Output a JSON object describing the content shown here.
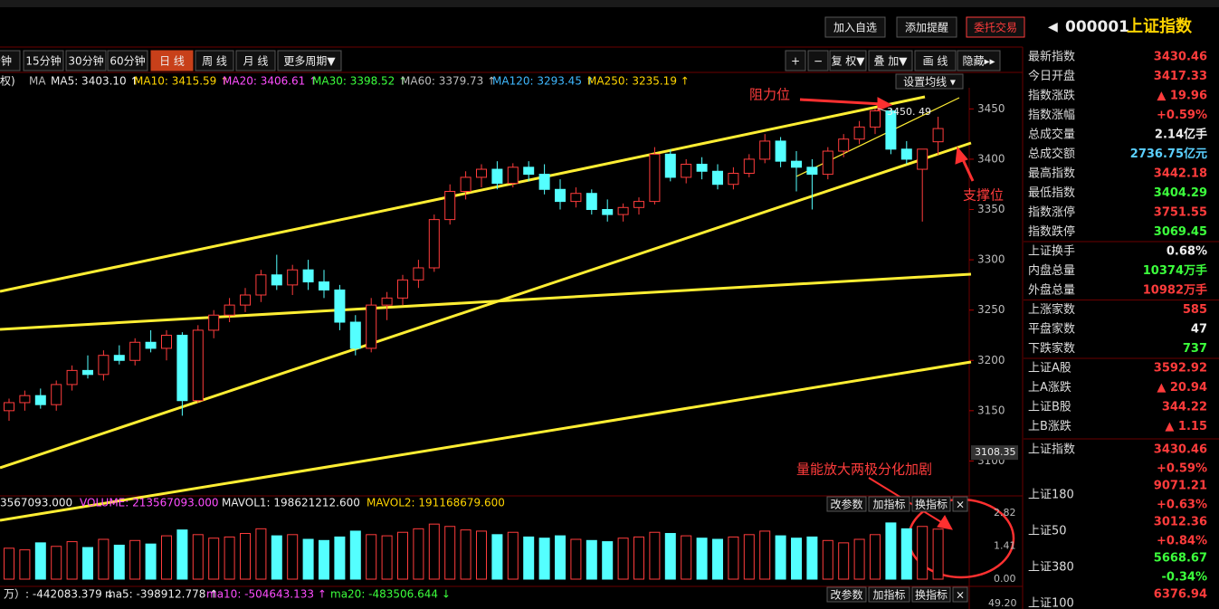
{
  "toolbar": {
    "buttons": [
      "加入自选",
      "添加提醒",
      "委托交易"
    ],
    "code": "000001",
    "name": "上证指数"
  },
  "period_tabs": [
    "分钟",
    "15分钟",
    "30分钟",
    "60分钟",
    "日 线",
    "周 线",
    "月 线",
    "更多周期▼"
  ],
  "selected_tab": 4,
  "chart_tools": [
    "+",
    "−",
    "复 权▼",
    "叠 加▼",
    "画 线",
    "隐藏▸▸"
  ],
  "ma_bar": {
    "prefix": "权)",
    "label": "MA",
    "button": "设置均线 ▾",
    "items": [
      {
        "text": "MA5: 3403.10 ↑",
        "color": "white"
      },
      {
        "text": "MA10: 3415.59 ↑",
        "color": "yellow"
      },
      {
        "text": "MA20: 3406.61 ↑",
        "color": "magenta"
      },
      {
        "text": "MA30: 3398.52 ↑",
        "color": "green"
      },
      {
        "text": "MA60: 3379.73 ↑",
        "color": "gray"
      },
      {
        "text": "MA120: 3293.45 ↑",
        "color": "blue"
      },
      {
        "text": "MA250: 3235.19 ↑",
        "color": "yellow"
      }
    ]
  },
  "volume_bar": {
    "items": [
      {
        "text": "3567093.000",
        "color": "white"
      },
      {
        "text": "VOLUME: 213567093.000",
        "color": "magenta"
      },
      {
        "text": "MAVOL1: 198621212.600",
        "color": "white"
      },
      {
        "text": "MAVOL2: 191168679.600",
        "color": "yellow"
      }
    ],
    "buttons": [
      "改参数",
      "加指标",
      "换指标",
      "×"
    ]
  },
  "indicator_bar": {
    "items": [
      {
        "text": "万）: -442083.379 ↓",
        "color": "white"
      },
      {
        "text": "ma5: -398912.778 ↑",
        "color": "white"
      },
      {
        "text": "ma10: -504643.133 ↑",
        "color": "magenta"
      },
      {
        "text": "ma20: -483506.644 ↓",
        "color": "green"
      }
    ],
    "buttons": [
      "改参数",
      "加指标",
      "换指标",
      "×"
    ],
    "tick": "49.20"
  },
  "annotations": [
    "阻力位",
    "支撑位",
    "量能放大两极分化加剧"
  ],
  "chart_data": [
    {
      "type": "candlestick",
      "ylim": [
        3068,
        3471
      ],
      "yticks": [
        3100,
        3150,
        3200,
        3250,
        3300,
        3350,
        3400,
        3450
      ],
      "up_color": "#ff3c3c",
      "down_color": "#54ffff",
      "high_label": "3450. 49",
      "low_marker": 3108.35,
      "open": [
        3150,
        3158,
        3165,
        3156,
        3176,
        3190,
        3186,
        3205,
        3200,
        3218,
        3212,
        3225,
        3160,
        3230,
        3245,
        3255,
        3265,
        3285,
        3275,
        3290,
        3278,
        3270,
        3238,
        3212,
        3255,
        3262,
        3280,
        3292,
        3340,
        3368,
        3382,
        3390,
        3376,
        3392,
        3385,
        3370,
        3358,
        3366,
        3350,
        3345,
        3352,
        3358,
        3405,
        3382,
        3395,
        3388,
        3375,
        3386,
        3400,
        3418,
        3398,
        3392,
        3385,
        3408,
        3420,
        3432,
        3448,
        3410,
        3390,
        3417.33
      ],
      "high": [
        3162,
        3170,
        3172,
        3180,
        3195,
        3205,
        3210,
        3215,
        3222,
        3230,
        3230,
        3228,
        3235,
        3250,
        3262,
        3272,
        3290,
        3305,
        3295,
        3300,
        3290,
        3275,
        3245,
        3262,
        3268,
        3285,
        3300,
        3345,
        3375,
        3388,
        3395,
        3398,
        3396,
        3398,
        3395,
        3380,
        3372,
        3370,
        3360,
        3356,
        3362,
        3412,
        3410,
        3400,
        3402,
        3395,
        3392,
        3405,
        3425,
        3422,
        3408,
        3400,
        3412,
        3425,
        3438,
        3450.49,
        3450,
        3418,
        3408,
        3442.18
      ],
      "low": [
        3140,
        3150,
        3152,
        3150,
        3170,
        3182,
        3180,
        3196,
        3195,
        3208,
        3200,
        3145,
        3158,
        3222,
        3238,
        3248,
        3258,
        3270,
        3265,
        3270,
        3262,
        3230,
        3205,
        3208,
        3240,
        3255,
        3272,
        3288,
        3335,
        3360,
        3372,
        3370,
        3372,
        3378,
        3365,
        3350,
        3352,
        3345,
        3338,
        3338,
        3345,
        3355,
        3378,
        3376,
        3380,
        3370,
        3370,
        3382,
        3396,
        3392,
        3368,
        3350,
        3380,
        3402,
        3415,
        3425,
        3405,
        3395,
        3338,
        3404.29
      ],
      "close": [
        3158,
        3165,
        3156,
        3176,
        3190,
        3186,
        3205,
        3200,
        3218,
        3212,
        3225,
        3160,
        3230,
        3245,
        3255,
        3265,
        3285,
        3275,
        3290,
        3278,
        3270,
        3238,
        3212,
        3255,
        3262,
        3280,
        3292,
        3340,
        3368,
        3382,
        3390,
        3376,
        3392,
        3385,
        3370,
        3358,
        3366,
        3350,
        3345,
        3352,
        3358,
        3405,
        3382,
        3395,
        3388,
        3375,
        3386,
        3400,
        3418,
        3398,
        3392,
        3385,
        3408,
        3420,
        3432,
        3448,
        3410,
        3400,
        3410,
        3430.46
      ]
    },
    {
      "type": "bar",
      "ylim": [
        0,
        2.82
      ],
      "yticks": [
        {
          "value": 0,
          "label": "0.00"
        },
        1.41,
        2.82
      ],
      "values": [
        1.32,
        1.25,
        1.55,
        1.4,
        1.6,
        1.35,
        1.7,
        1.45,
        1.65,
        1.5,
        1.85,
        2.1,
        1.9,
        1.75,
        1.8,
        1.95,
        2.15,
        1.85,
        1.9,
        1.7,
        1.65,
        1.8,
        2.05,
        1.9,
        1.85,
        2.0,
        2.15,
        2.35,
        2.25,
        2.1,
        2.05,
        1.9,
        2.0,
        1.8,
        1.75,
        1.85,
        1.7,
        1.65,
        1.6,
        1.75,
        1.8,
        2.0,
        1.95,
        1.85,
        1.75,
        1.7,
        1.8,
        1.9,
        2.05,
        1.85,
        1.75,
        1.8,
        1.65,
        1.55,
        1.7,
        1.9,
        2.4,
        2.15,
        2.25,
        2.1357
      ]
    }
  ],
  "quote_panel": {
    "rows": [
      {
        "label": "最新指数",
        "value": "3430.46",
        "color": "red"
      },
      {
        "label": "今日开盘",
        "value": "3417.33",
        "color": "red"
      },
      {
        "label": "指数涨跌",
        "value": "▲ 19.96",
        "color": "red"
      },
      {
        "label": "指数涨幅",
        "value": "+0.59%",
        "color": "red"
      },
      {
        "label": "总成交量",
        "value": "2.14亿手",
        "color": "white"
      },
      {
        "label": "总成交额",
        "value": "2736.75亿元",
        "color": "cyan"
      },
      {
        "label": "最高指数",
        "value": "3442.18",
        "color": "red"
      },
      {
        "label": "最低指数",
        "value": "3404.29",
        "color": "green"
      },
      {
        "label": "指数涨停",
        "value": "3751.55",
        "color": "red"
      },
      {
        "label": "指数跌停",
        "value": "3069.45",
        "color": "green"
      },
      {
        "label": "上证换手",
        "value": "0.68%",
        "color": "white"
      },
      {
        "label": "内盘总量",
        "value": "10374万手",
        "color": "green"
      },
      {
        "label": "外盘总量",
        "value": "10982万手",
        "color": "red"
      },
      {
        "label": "上涨家数",
        "value": "585",
        "color": "red"
      },
      {
        "label": "平盘家数",
        "value": "47",
        "color": "white"
      },
      {
        "label": "下跌家数",
        "value": "737",
        "color": "green"
      },
      {
        "label": "上证A股",
        "value": "3592.92",
        "color": "red"
      },
      {
        "label": "上A涨跌",
        "value": "▲ 20.94",
        "color": "red"
      },
      {
        "label": "上证B股",
        "value": "344.22",
        "color": "red"
      },
      {
        "label": "上B涨跌",
        "value": "▲ 1.15",
        "color": "red"
      }
    ],
    "index_rows": [
      {
        "label": "上证指数",
        "value": "3430.46",
        "change": "+0.59%",
        "color": "red"
      },
      {
        "label": "上证180",
        "value": "9071.21",
        "change": "+0.63%",
        "color": "red"
      },
      {
        "label": "上证50",
        "value": "3012.36",
        "change": "+0.84%",
        "color": "red"
      },
      {
        "label": "上证380",
        "value": "5668.67",
        "change": "-0.34%",
        "color": "green"
      },
      {
        "label": "上证100",
        "value": "6376.94",
        "change": "",
        "color": "red"
      }
    ]
  }
}
